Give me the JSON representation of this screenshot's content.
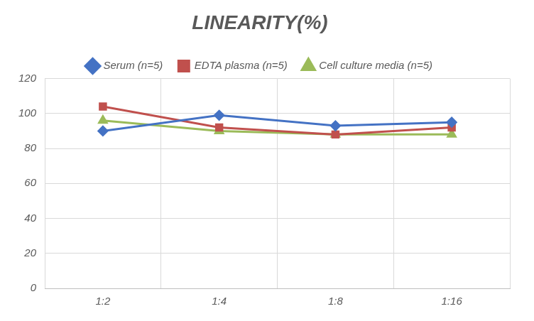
{
  "chart_data": {
    "type": "line",
    "title": "LINEARITY(%)",
    "categories": [
      "1:2",
      "1:4",
      "1:8",
      "1:16"
    ],
    "series": [
      {
        "name": "Serum (n=5)",
        "color": "#4472c4",
        "marker": "diamond",
        "values": [
          90,
          99,
          93,
          95
        ]
      },
      {
        "name": "EDTA plasma (n=5)",
        "color": "#c0504d",
        "marker": "square",
        "values": [
          104,
          92,
          88,
          92
        ]
      },
      {
        "name": "Cell culture media (n=5)",
        "color": "#9bbb59",
        "marker": "triangle",
        "values": [
          96,
          90,
          88,
          88
        ]
      }
    ],
    "ylim": [
      0,
      120
    ],
    "yticks": [
      0,
      20,
      40,
      60,
      80,
      100,
      120
    ],
    "grid": true,
    "legend": "top"
  }
}
